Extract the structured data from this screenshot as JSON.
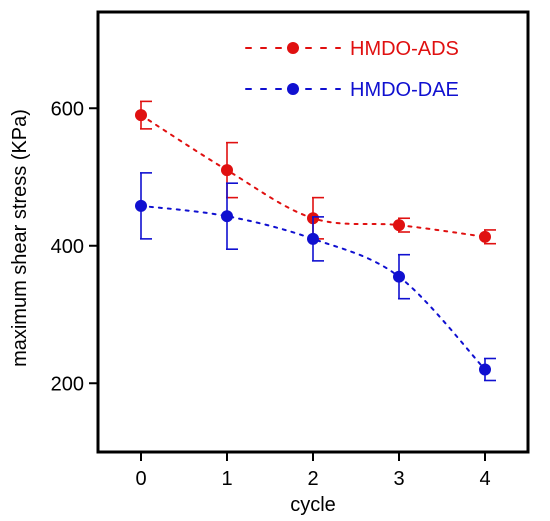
{
  "chart_data": {
    "type": "line",
    "xlabel": "cycle",
    "ylabel": "maximum shear stress (KPa)",
    "x": [
      0,
      1,
      2,
      3,
      4
    ],
    "x_ticks": [
      "0",
      "1",
      "2",
      "3",
      "4"
    ],
    "y_ticks": [
      "200",
      "400",
      "600"
    ],
    "xlim": [
      -0.5,
      4.5
    ],
    "ylim": [
      100,
      740
    ],
    "grid": false,
    "legend_position": "top-right",
    "series": [
      {
        "name": "HMDO-ADS",
        "color": "#e01010",
        "values": [
          590,
          510,
          440,
          430,
          413
        ],
        "error": [
          20,
          40,
          30,
          10,
          10
        ]
      },
      {
        "name": "HMDO-DAE",
        "color": "#1010d0",
        "values": [
          458,
          443,
          410,
          355,
          220
        ],
        "error": [
          48,
          48,
          32,
          32,
          16
        ]
      }
    ]
  }
}
